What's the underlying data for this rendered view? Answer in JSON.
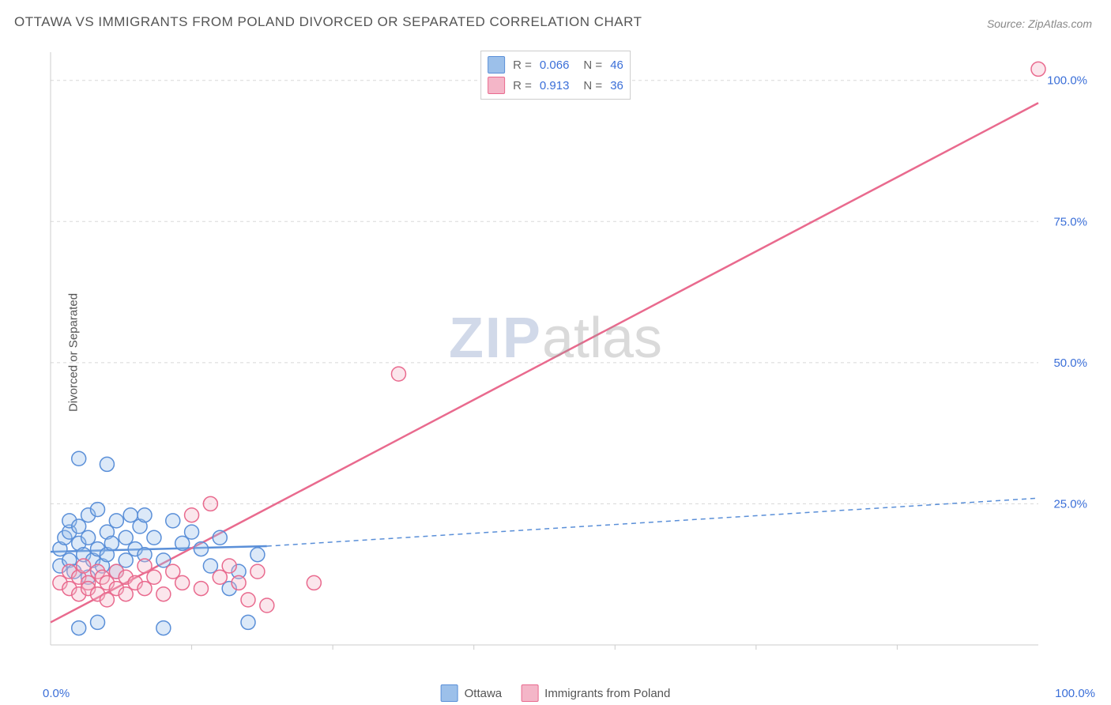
{
  "title": "OTTAWA VS IMMIGRANTS FROM POLAND DIVORCED OR SEPARATED CORRELATION CHART",
  "source": "Source: ZipAtlas.com",
  "ylabel": "Divorced or Separated",
  "watermark": {
    "zip": "ZIP",
    "atlas": "atlas"
  },
  "chart": {
    "type": "scatter",
    "xlim": [
      0,
      105
    ],
    "ylim": [
      0,
      105
    ],
    "ytick_values": [
      25,
      50,
      75,
      100
    ],
    "ytick_labels": [
      "25.0%",
      "50.0%",
      "75.0%",
      "100.0%"
    ],
    "xtick_left": "0.0%",
    "xtick_right": "100.0%",
    "grid_color": "#d8d8d8",
    "axis_color": "#cccccc",
    "background_color": "#ffffff",
    "label_fontsize": 15,
    "label_color": "#3b6fd8",
    "marker_radius": 9,
    "marker_stroke_width": 1.5,
    "marker_fill_opacity": 0.35,
    "line_width": 2.5,
    "series": [
      {
        "name": "Ottawa",
        "color_stroke": "#5a8fd8",
        "color_fill": "#9cc0ea",
        "R": "0.066",
        "N": "46",
        "trend": {
          "x1": 0,
          "y1": 16.5,
          "x2": 23,
          "y2": 17.5,
          "ext_x2": 105,
          "ext_y2": 26,
          "dash": "6,5"
        },
        "points": [
          [
            1,
            14
          ],
          [
            1,
            17
          ],
          [
            1.5,
            19
          ],
          [
            2,
            15
          ],
          [
            2,
            20
          ],
          [
            2,
            22
          ],
          [
            2.5,
            13
          ],
          [
            3,
            33
          ],
          [
            3,
            18
          ],
          [
            3,
            21
          ],
          [
            3.5,
            16
          ],
          [
            4,
            12
          ],
          [
            4,
            19
          ],
          [
            4,
            23
          ],
          [
            4.5,
            15
          ],
          [
            5,
            17
          ],
          [
            5,
            24
          ],
          [
            5.5,
            14
          ],
          [
            6,
            32
          ],
          [
            6,
            20
          ],
          [
            6,
            16
          ],
          [
            6.5,
            18
          ],
          [
            7,
            13
          ],
          [
            7,
            22
          ],
          [
            8,
            19
          ],
          [
            8,
            15
          ],
          [
            8.5,
            23
          ],
          [
            9,
            17
          ],
          [
            9.5,
            21
          ],
          [
            10,
            16
          ],
          [
            10,
            23
          ],
          [
            11,
            19
          ],
          [
            12,
            3
          ],
          [
            12,
            15
          ],
          [
            13,
            22
          ],
          [
            14,
            18
          ],
          [
            15,
            20
          ],
          [
            16,
            17
          ],
          [
            17,
            14
          ],
          [
            18,
            19
          ],
          [
            19,
            10
          ],
          [
            20,
            13
          ],
          [
            21,
            4
          ],
          [
            22,
            16
          ],
          [
            3,
            3
          ],
          [
            5,
            4
          ]
        ]
      },
      {
        "name": "Immigrants from Poland",
        "color_stroke": "#e96a8e",
        "color_fill": "#f4b6c8",
        "R": "0.913",
        "N": "36",
        "trend": {
          "x1": 0,
          "y1": 4,
          "x2": 105,
          "y2": 96,
          "dash": null
        },
        "points": [
          [
            1,
            11
          ],
          [
            2,
            10
          ],
          [
            2,
            13
          ],
          [
            3,
            12
          ],
          [
            3,
            9
          ],
          [
            3.5,
            14
          ],
          [
            4,
            11
          ],
          [
            4,
            10
          ],
          [
            5,
            13
          ],
          [
            5,
            9
          ],
          [
            5.5,
            12
          ],
          [
            6,
            11
          ],
          [
            6,
            8
          ],
          [
            7,
            10
          ],
          [
            7,
            13
          ],
          [
            8,
            12
          ],
          [
            8,
            9
          ],
          [
            9,
            11
          ],
          [
            10,
            10
          ],
          [
            10,
            14
          ],
          [
            11,
            12
          ],
          [
            12,
            9
          ],
          [
            13,
            13
          ],
          [
            14,
            11
          ],
          [
            15,
            23
          ],
          [
            16,
            10
          ],
          [
            17,
            25
          ],
          [
            18,
            12
          ],
          [
            19,
            14
          ],
          [
            20,
            11
          ],
          [
            21,
            8
          ],
          [
            22,
            13
          ],
          [
            23,
            7
          ],
          [
            28,
            11
          ],
          [
            37,
            48
          ],
          [
            105,
            102
          ]
        ]
      }
    ]
  },
  "legend_bottom": [
    {
      "label": "Ottawa",
      "fill": "#9cc0ea",
      "stroke": "#5a8fd8"
    },
    {
      "label": "Immigrants from Poland",
      "fill": "#f4b6c8",
      "stroke": "#e96a8e"
    }
  ]
}
